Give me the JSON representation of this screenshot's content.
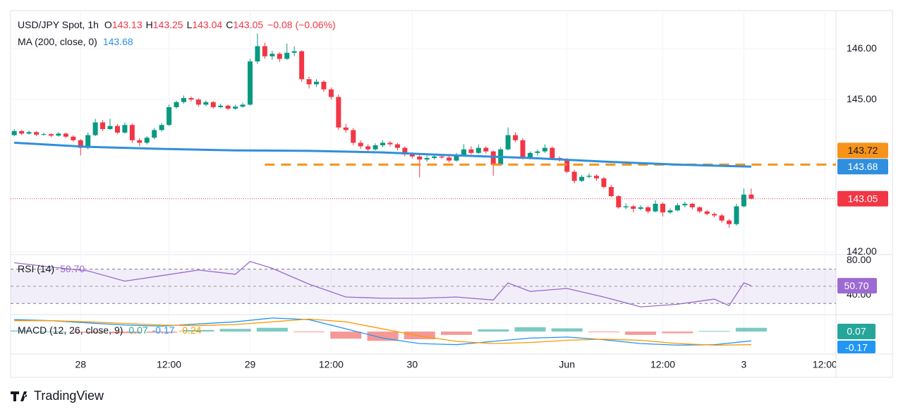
{
  "chart_data": {
    "type": "candlestick",
    "title": "USD/JPY Spot, 1h",
    "ohlc_labels": [
      "O",
      "H",
      "L",
      "C"
    ],
    "change": "−0.08 (−0.06%)",
    "up_color": "#089981",
    "down_color": "#f23645",
    "ohlc": [
      [
        144.3,
        144.42,
        144.28,
        144.38
      ],
      [
        144.38,
        144.4,
        144.3,
        144.33
      ],
      [
        144.33,
        144.39,
        144.31,
        144.36
      ],
      [
        144.36,
        144.38,
        144.28,
        144.31
      ],
      [
        144.31,
        144.35,
        144.29,
        144.32
      ],
      [
        144.32,
        144.34,
        144.26,
        144.29
      ],
      [
        144.29,
        144.36,
        144.27,
        144.33
      ],
      [
        144.33,
        144.35,
        144.24,
        144.27
      ],
      [
        144.27,
        144.3,
        144.17,
        144.2
      ],
      [
        144.2,
        144.22,
        143.9,
        144.05
      ],
      [
        144.05,
        144.35,
        144.02,
        144.3
      ],
      [
        144.3,
        144.62,
        144.28,
        144.55
      ],
      [
        144.55,
        144.6,
        144.38,
        144.42
      ],
      [
        144.42,
        144.62,
        144.4,
        144.48
      ],
      [
        144.48,
        144.52,
        144.32,
        144.35
      ],
      [
        144.35,
        144.55,
        144.33,
        144.5
      ],
      [
        144.5,
        144.53,
        144.15,
        144.2
      ],
      [
        144.2,
        144.24,
        144.08,
        144.15
      ],
      [
        144.15,
        144.28,
        144.12,
        144.25
      ],
      [
        144.25,
        144.44,
        144.22,
        144.4
      ],
      [
        144.4,
        144.54,
        144.37,
        144.5
      ],
      [
        144.5,
        144.9,
        144.48,
        144.85
      ],
      [
        144.85,
        144.98,
        144.82,
        144.95
      ],
      [
        144.95,
        145.08,
        144.92,
        145.03
      ],
      [
        145.03,
        145.06,
        144.96,
        145.0
      ],
      [
        145.0,
        145.02,
        144.86,
        144.9
      ],
      [
        144.9,
        144.98,
        144.87,
        144.95
      ],
      [
        144.95,
        144.97,
        144.82,
        144.85
      ],
      [
        144.85,
        144.92,
        144.83,
        144.88
      ],
      [
        144.88,
        144.9,
        144.79,
        144.82
      ],
      [
        144.82,
        144.9,
        144.8,
        144.86
      ],
      [
        144.86,
        144.94,
        144.84,
        144.9
      ],
      [
        144.9,
        145.8,
        144.88,
        145.75
      ],
      [
        145.75,
        146.3,
        145.7,
        146.05
      ],
      [
        146.05,
        146.12,
        145.8,
        145.85
      ],
      [
        145.85,
        145.96,
        145.78,
        145.9
      ],
      [
        145.9,
        145.93,
        145.74,
        145.8
      ],
      [
        145.8,
        146.1,
        145.78,
        145.92
      ],
      [
        145.92,
        146.05,
        145.85,
        145.95
      ],
      [
        145.95,
        145.97,
        145.35,
        145.4
      ],
      [
        145.4,
        145.45,
        145.22,
        145.3
      ],
      [
        145.3,
        145.4,
        145.25,
        145.35
      ],
      [
        145.35,
        145.38,
        145.15,
        145.2
      ],
      [
        145.2,
        145.24,
        145.0,
        145.05
      ],
      [
        145.05,
        145.1,
        144.4,
        144.45
      ],
      [
        144.45,
        144.52,
        144.35,
        144.4
      ],
      [
        144.4,
        144.44,
        144.1,
        144.15
      ],
      [
        144.15,
        144.2,
        144.03,
        144.08
      ],
      [
        144.08,
        144.12,
        143.98,
        144.02
      ],
      [
        144.02,
        144.14,
        144.0,
        144.1
      ],
      [
        144.1,
        144.2,
        144.06,
        144.15
      ],
      [
        144.15,
        144.18,
        144.08,
        144.12
      ],
      [
        144.12,
        144.15,
        144.0,
        144.05
      ],
      [
        144.05,
        144.08,
        143.88,
        143.92
      ],
      [
        143.92,
        143.96,
        143.84,
        143.88
      ],
      [
        143.88,
        143.92,
        143.47,
        143.82
      ],
      [
        143.82,
        143.9,
        143.78,
        143.85
      ],
      [
        143.85,
        143.92,
        143.82,
        143.88
      ],
      [
        143.88,
        143.92,
        143.83,
        143.86
      ],
      [
        143.86,
        143.89,
        143.76,
        143.8
      ],
      [
        143.8,
        143.95,
        143.78,
        143.9
      ],
      [
        143.9,
        144.12,
        143.88,
        144.02
      ],
      [
        144.02,
        144.08,
        143.92,
        143.95
      ],
      [
        143.95,
        144.12,
        143.93,
        144.05
      ],
      [
        144.05,
        144.08,
        143.94,
        143.98
      ],
      [
        143.98,
        144.0,
        143.5,
        143.72
      ],
      [
        143.72,
        144.06,
        143.7,
        144.02
      ],
      [
        144.02,
        144.45,
        144.0,
        144.3
      ],
      [
        144.3,
        144.36,
        144.16,
        144.2
      ],
      [
        144.2,
        144.24,
        143.82,
        143.85
      ],
      [
        143.85,
        143.98,
        143.82,
        143.95
      ],
      [
        143.95,
        144.02,
        143.9,
        143.98
      ],
      [
        143.98,
        144.12,
        143.95,
        144.05
      ],
      [
        144.05,
        144.08,
        143.82,
        143.85
      ],
      [
        143.85,
        143.88,
        143.78,
        143.82
      ],
      [
        143.82,
        143.85,
        143.55,
        143.58
      ],
      [
        143.58,
        143.62,
        143.35,
        143.4
      ],
      [
        143.4,
        143.52,
        143.38,
        143.48
      ],
      [
        143.48,
        143.55,
        143.45,
        143.5
      ],
      [
        143.5,
        143.53,
        143.4,
        143.45
      ],
      [
        143.45,
        143.48,
        143.25,
        143.28
      ],
      [
        143.28,
        143.32,
        143.08,
        143.1
      ],
      [
        143.1,
        143.12,
        142.85,
        142.88
      ],
      [
        142.88,
        142.96,
        142.84,
        142.9
      ],
      [
        142.9,
        142.93,
        142.78,
        142.85
      ],
      [
        142.85,
        142.92,
        142.82,
        142.88
      ],
      [
        142.88,
        142.91,
        142.76,
        142.8
      ],
      [
        142.8,
        143.02,
        142.78,
        142.95
      ],
      [
        142.95,
        142.98,
        142.7,
        142.78
      ],
      [
        142.78,
        142.86,
        142.75,
        142.82
      ],
      [
        142.82,
        142.96,
        142.8,
        142.92
      ],
      [
        142.92,
        142.99,
        142.88,
        142.95
      ],
      [
        142.95,
        142.97,
        142.84,
        142.88
      ],
      [
        142.88,
        142.9,
        142.77,
        142.8
      ],
      [
        142.8,
        142.83,
        142.72,
        142.75
      ],
      [
        142.75,
        142.78,
        142.68,
        142.72
      ],
      [
        142.72,
        142.75,
        142.58,
        142.62
      ],
      [
        142.62,
        142.65,
        142.48,
        142.55
      ],
      [
        142.55,
        142.95,
        142.52,
        142.9
      ],
      [
        142.9,
        143.25,
        142.88,
        143.13
      ],
      [
        143.13,
        143.25,
        143.04,
        143.05
      ]
    ],
    "xlim": [
      -0.5,
      111.5
    ],
    "xticks": [
      {
        "value": 9,
        "label": "28"
      },
      {
        "value": 21,
        "label": "12:00"
      },
      {
        "value": 32,
        "label": "29"
      },
      {
        "value": 43,
        "label": "12:00"
      },
      {
        "value": 54,
        "label": "30"
      },
      {
        "value": 75,
        "label": "Jun"
      },
      {
        "value": 88,
        "label": "12:00"
      },
      {
        "value": 99,
        "label": "3"
      },
      {
        "value": 110,
        "label": "12:00"
      }
    ],
    "ylim": [
      141.95,
      146.75
    ],
    "yticks": [
      {
        "value": 146,
        "label": "146.00"
      },
      {
        "value": 145,
        "label": "145.00"
      },
      {
        "value": 142,
        "label": "142.00"
      }
    ],
    "grid": true,
    "ma": {
      "label": "MA (200, close, 0)",
      "color": "#2f8fde",
      "x": [
        0,
        10,
        20,
        30,
        40,
        50,
        60,
        70,
        80,
        90,
        100
      ],
      "values": [
        144.15,
        144.07,
        144.03,
        144.0,
        143.99,
        143.96,
        143.9,
        143.85,
        143.78,
        143.72,
        143.68
      ]
    },
    "level": {
      "value": 143.72,
      "color": "#f7931a"
    },
    "rsi": {
      "label": "RSI (14)",
      "color": "#9c6ad0",
      "last_value_label": "50.70",
      "x": [
        0,
        5,
        10,
        15,
        20,
        25,
        30,
        32,
        35,
        40,
        45,
        50,
        55,
        60,
        65,
        67,
        70,
        75,
        80,
        85,
        90,
        95,
        97,
        99,
        100
      ],
      "values": [
        77.5,
        72.5,
        68,
        56,
        62.5,
        69,
        64,
        79,
        71,
        52.5,
        37.5,
        36,
        36,
        37.5,
        34,
        54,
        44,
        47.5,
        37.5,
        26,
        29,
        35,
        27.5,
        54,
        50.7
      ],
      "ylim": [
        17,
        87
      ],
      "yticks": [
        {
          "value": 80,
          "label": "80.00"
        },
        {
          "value": 40,
          "label": "40.00"
        }
      ],
      "band": [
        30,
        70
      ],
      "mid": 50
    },
    "macd": {
      "label": "MACD (12, 26, close, 9)",
      "ylim": [
        -0.4,
        0.3
      ],
      "x": [
        0,
        5,
        10,
        15,
        20,
        25,
        30,
        35,
        40,
        45,
        50,
        55,
        60,
        65,
        70,
        75,
        80,
        85,
        90,
        95,
        100
      ],
      "histogram": {
        "up_color": "#26a69a",
        "down_color": "#ef5350",
        "values": [
          0.02,
          0,
          -0.02,
          -0.03,
          -0.02,
          0.03,
          0.05,
          0.07,
          -0.01,
          -0.13,
          -0.17,
          -0.14,
          -0.06,
          0.04,
          0.08,
          0.06,
          -0.01,
          -0.06,
          -0.03,
          0.01,
          0.07
        ]
      },
      "macd": {
        "color": "#2196f3",
        "values": [
          0.22,
          0.2,
          0.16,
          0.12,
          0.1,
          0.14,
          0.18,
          0.25,
          0.22,
          0.05,
          -0.12,
          -0.22,
          -0.24,
          -0.18,
          -0.12,
          -0.1,
          -0.15,
          -0.22,
          -0.25,
          -0.24,
          -0.17
        ]
      },
      "signal": {
        "color": "#ff9800",
        "values": [
          0.2,
          0.2,
          0.18,
          0.15,
          0.12,
          0.11,
          0.13,
          0.18,
          0.23,
          0.18,
          0.05,
          -0.08,
          -0.18,
          -0.22,
          -0.2,
          -0.16,
          -0.14,
          -0.16,
          -0.22,
          -0.25,
          -0.24
        ]
      }
    },
    "brand": "TradingView"
  }
}
